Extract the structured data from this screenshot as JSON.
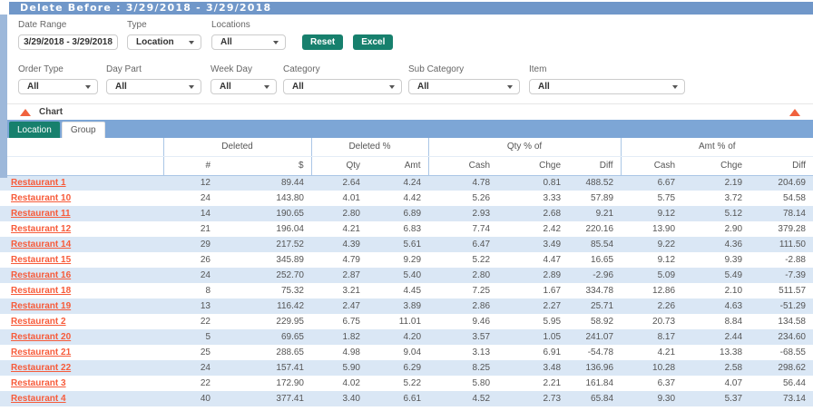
{
  "title_bar": {
    "title": "Delete Before : 3/29/2018 - 3/29/2018"
  },
  "filters": {
    "date_range": {
      "label": "Date Range",
      "value": "3/29/2018 - 3/29/2018"
    },
    "type": {
      "label": "Type",
      "value": "Location"
    },
    "locations": {
      "label": "Locations",
      "value": "All"
    },
    "reset_label": "Reset",
    "excel_label": "Excel",
    "order_type": {
      "label": "Order Type",
      "value": "All"
    },
    "day_part": {
      "label": "Day Part",
      "value": "All"
    },
    "week_day": {
      "label": "Week Day",
      "value": "All"
    },
    "category": {
      "label": "Category",
      "value": "All"
    },
    "sub_category": {
      "label": "Sub Category",
      "value": "All"
    },
    "item": {
      "label": "Item",
      "value": "All"
    }
  },
  "chart_section": {
    "label": "Chart",
    "collapse_icon": "triangle-up"
  },
  "tabs": {
    "location": "Location",
    "group": "Group",
    "active_tab": "Location"
  },
  "table": {
    "group_headers": {
      "deleted": "Deleted",
      "deleted_pct": "Deleted %",
      "qty_pct_of": "Qty % of",
      "amt_pct_of": "Amt % of"
    },
    "sub_headers": [
      "#",
      "$",
      "Qty",
      "Amt",
      "Cash",
      "Chge",
      "Diff",
      "Cash",
      "Chge",
      "Diff"
    ],
    "rows": [
      {
        "name": "Restaurant 1",
        "values": [
          "12",
          "89.44",
          "2.64",
          "4.24",
          "4.78",
          "0.81",
          "488.52",
          "6.67",
          "2.19",
          "204.69"
        ]
      },
      {
        "name": "Restaurant 10",
        "values": [
          "24",
          "143.80",
          "4.01",
          "4.42",
          "5.26",
          "3.33",
          "57.89",
          "5.75",
          "3.72",
          "54.58"
        ]
      },
      {
        "name": "Restaurant 11",
        "values": [
          "14",
          "190.65",
          "2.80",
          "6.89",
          "2.93",
          "2.68",
          "9.21",
          "9.12",
          "5.12",
          "78.14"
        ]
      },
      {
        "name": "Restaurant 12",
        "values": [
          "21",
          "196.04",
          "4.21",
          "6.83",
          "7.74",
          "2.42",
          "220.16",
          "13.90",
          "2.90",
          "379.28"
        ]
      },
      {
        "name": "Restaurant 14",
        "values": [
          "29",
          "217.52",
          "4.39",
          "5.61",
          "6.47",
          "3.49",
          "85.54",
          "9.22",
          "4.36",
          "111.50"
        ]
      },
      {
        "name": "Restaurant 15",
        "values": [
          "26",
          "345.89",
          "4.79",
          "9.29",
          "5.22",
          "4.47",
          "16.65",
          "9.12",
          "9.39",
          "-2.88"
        ]
      },
      {
        "name": "Restaurant 16",
        "values": [
          "24",
          "252.70",
          "2.87",
          "5.40",
          "2.80",
          "2.89",
          "-2.96",
          "5.09",
          "5.49",
          "-7.39"
        ]
      },
      {
        "name": "Restaurant 18",
        "values": [
          "8",
          "75.32",
          "3.21",
          "4.45",
          "7.25",
          "1.67",
          "334.78",
          "12.86",
          "2.10",
          "511.57"
        ]
      },
      {
        "name": "Restaurant 19",
        "values": [
          "13",
          "116.42",
          "2.47",
          "3.89",
          "2.86",
          "2.27",
          "25.71",
          "2.26",
          "4.63",
          "-51.29"
        ]
      },
      {
        "name": "Restaurant 2",
        "values": [
          "22",
          "229.95",
          "6.75",
          "11.01",
          "9.46",
          "5.95",
          "58.92",
          "20.73",
          "8.84",
          "134.58"
        ]
      },
      {
        "name": "Restaurant 20",
        "values": [
          "5",
          "69.65",
          "1.82",
          "4.20",
          "3.57",
          "1.05",
          "241.07",
          "8.17",
          "2.44",
          "234.60"
        ]
      },
      {
        "name": "Restaurant 21",
        "values": [
          "25",
          "288.65",
          "4.98",
          "9.04",
          "3.13",
          "6.91",
          "-54.78",
          "4.21",
          "13.38",
          "-68.55"
        ]
      },
      {
        "name": "Restaurant 22",
        "values": [
          "24",
          "157.41",
          "5.90",
          "6.29",
          "8.25",
          "3.48",
          "136.96",
          "10.28",
          "2.58",
          "298.62"
        ]
      },
      {
        "name": "Restaurant 3",
        "values": [
          "22",
          "172.90",
          "4.02",
          "5.22",
          "5.80",
          "2.21",
          "161.84",
          "6.37",
          "4.07",
          "56.44"
        ]
      },
      {
        "name": "Restaurant 4",
        "values": [
          "40",
          "377.41",
          "3.40",
          "6.61",
          "4.52",
          "2.73",
          "65.84",
          "9.30",
          "5.37",
          "73.14"
        ]
      }
    ]
  },
  "colors": {
    "title_bar_blue": "#7097c9",
    "tab_bar_blue": "#7da6d6",
    "accent_teal": "#17806d",
    "row_stripe_blue": "#dae7f5",
    "link_orange": "#f75b3a",
    "triangle_orange": "#f0623e"
  }
}
